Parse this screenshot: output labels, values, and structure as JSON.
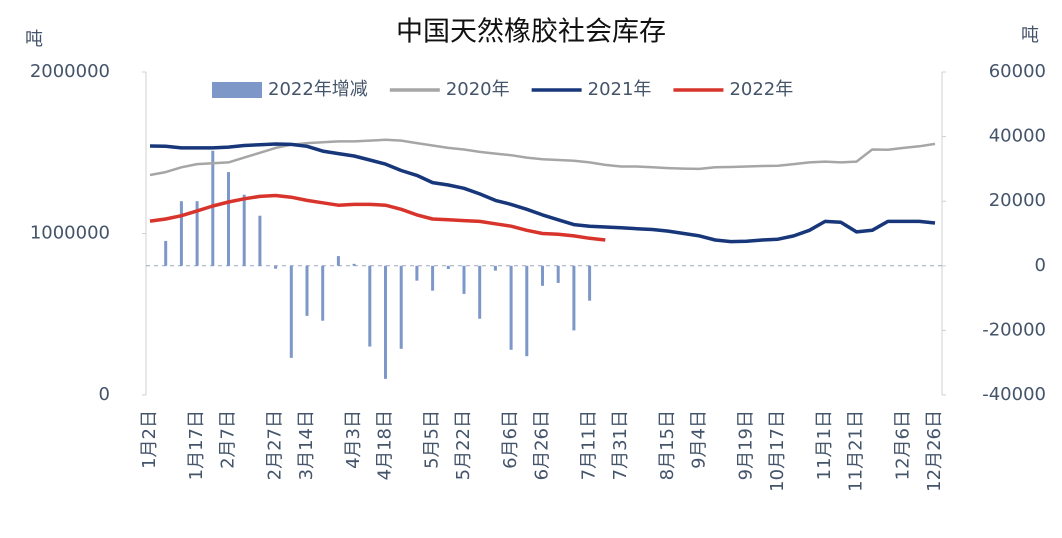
{
  "chart_data": {
    "type": "combo",
    "title": "中国天然橡胶社会库存",
    "y_label": "吨",
    "y2_label": "吨",
    "categories": [
      "1月2日",
      null,
      null,
      "1月17日",
      null,
      "2月7日",
      null,
      null,
      "2月27日",
      null,
      "3月14日",
      null,
      null,
      "4月3日",
      null,
      "4月18日",
      null,
      null,
      "5月5日",
      null,
      "5月22日",
      null,
      null,
      "6月6日",
      null,
      "6月26日",
      null,
      null,
      "7月11日",
      null,
      "7月31日",
      null,
      null,
      "8月15日",
      null,
      "9月4日",
      null,
      null,
      "9月19日",
      null,
      "10月17日",
      null,
      null,
      "11月1日",
      null,
      "11月21日",
      null,
      null,
      "12月6日",
      null,
      "12月26日"
    ],
    "series": [
      {
        "name": "2022年增减",
        "kind": "bar",
        "axis": "y2",
        "color": "#7d97c8",
        "values": [
          null,
          7700,
          20000,
          20000,
          35600,
          29000,
          22000,
          15500,
          -900,
          -28500,
          -15500,
          -17000,
          3000,
          600,
          -25000,
          -35000,
          -25700,
          -4600,
          -7700,
          -1000,
          -8700,
          -16400,
          -1500,
          -26000,
          -28000,
          -6200,
          -5300,
          -20000,
          -10800,
          null,
          null,
          null,
          null,
          null,
          null,
          null,
          null,
          null,
          null,
          null,
          null,
          null,
          null,
          null,
          null,
          null,
          null,
          null,
          null,
          null,
          null
        ]
      },
      {
        "name": "2020年",
        "kind": "line",
        "color": "#a6a6a6",
        "values": [
          1362000,
          1380000,
          1410000,
          1430000,
          1435000,
          1440000,
          1470000,
          1500000,
          1530000,
          1550000,
          1560000,
          1565000,
          1570000,
          1570000,
          1575000,
          1580000,
          1575000,
          1560000,
          1545000,
          1530000,
          1520000,
          1505000,
          1495000,
          1485000,
          1470000,
          1460000,
          1455000,
          1450000,
          1440000,
          1425000,
          1415000,
          1415000,
          1410000,
          1405000,
          1402000,
          1400000,
          1410000,
          1412000,
          1415000,
          1418000,
          1420000,
          1430000,
          1440000,
          1445000,
          1440000,
          1445000,
          1520000,
          1518000,
          1530000,
          1540000,
          1555000
        ]
      },
      {
        "name": "2021年",
        "kind": "line",
        "color": "#17377a",
        "values": [
          1542000,
          1540000,
          1530000,
          1530000,
          1530000,
          1535000,
          1545000,
          1550000,
          1554000,
          1552000,
          1540000,
          1510000,
          1495000,
          1480000,
          1455000,
          1430000,
          1390000,
          1360000,
          1315000,
          1300000,
          1280000,
          1245000,
          1205000,
          1180000,
          1150000,
          1115000,
          1085000,
          1055000,
          1045000,
          1040000,
          1035000,
          1030000,
          1025000,
          1015000,
          1000000,
          985000,
          960000,
          950000,
          952000,
          960000,
          965000,
          985000,
          1020000,
          1075000,
          1070000,
          1010000,
          1020000,
          1075000,
          1075000,
          1075000,
          1065000
        ]
      },
      {
        "name": "2022年",
        "kind": "line",
        "color": "#d8342c",
        "values": [
          1077000,
          1090000,
          1110000,
          1140000,
          1170000,
          1195000,
          1215000,
          1230000,
          1235000,
          1225000,
          1205000,
          1190000,
          1175000,
          1180000,
          1180000,
          1175000,
          1150000,
          1115000,
          1090000,
          1085000,
          1080000,
          1075000,
          1060000,
          1045000,
          1020000,
          1000000,
          995000,
          985000,
          970000,
          960000,
          null,
          null,
          null,
          null,
          null,
          null,
          null,
          null,
          null,
          null,
          null,
          null,
          null,
          null,
          null,
          null,
          null,
          null,
          null,
          null,
          null
        ]
      }
    ],
    "ylim": [
      0,
      2000000
    ],
    "yticks": [
      0,
      1000000,
      2000000
    ],
    "y2lim": [
      -40000,
      60000
    ],
    "y2ticks": [
      -40000,
      -20000,
      0,
      20000,
      40000,
      60000
    ],
    "grid": false
  }
}
